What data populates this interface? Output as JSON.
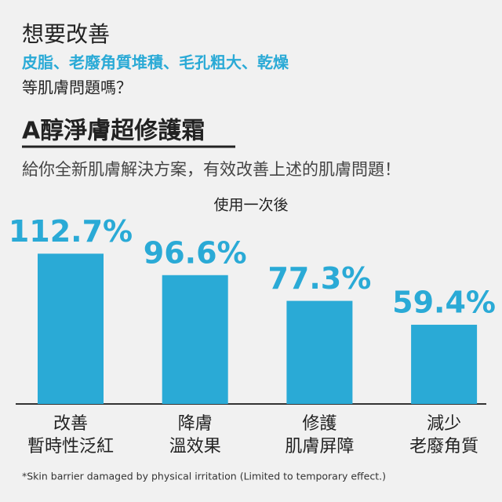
{
  "header": {
    "title": "想要改善",
    "highlight": "皮脂、老廢角質堆積、毛孔粗大、乾燥",
    "question": "等肌膚問題嗎？",
    "product": "A醇淨膚超修護霜",
    "subtitle": "給你全新肌膚解決方案，有效改善上述的肌膚問題！"
  },
  "chart_data": {
    "type": "bar",
    "title": "使用一次後",
    "categories": [
      [
        "改善",
        "暫時性泛紅"
      ],
      [
        "降膚",
        "溫效果"
      ],
      [
        "修護",
        "肌膚屏障"
      ],
      [
        "減少",
        "老廢角質"
      ]
    ],
    "values": [
      112.7,
      96.6,
      77.3,
      59.4
    ],
    "value_labels": [
      "112.7%",
      "96.6%",
      "77.3%",
      "59.4%"
    ],
    "color": "#2aaad6",
    "ylim": [
      0,
      120
    ]
  },
  "footnote": "*Skin barrier damaged by physical irritation (Limited to temporary effect.)"
}
